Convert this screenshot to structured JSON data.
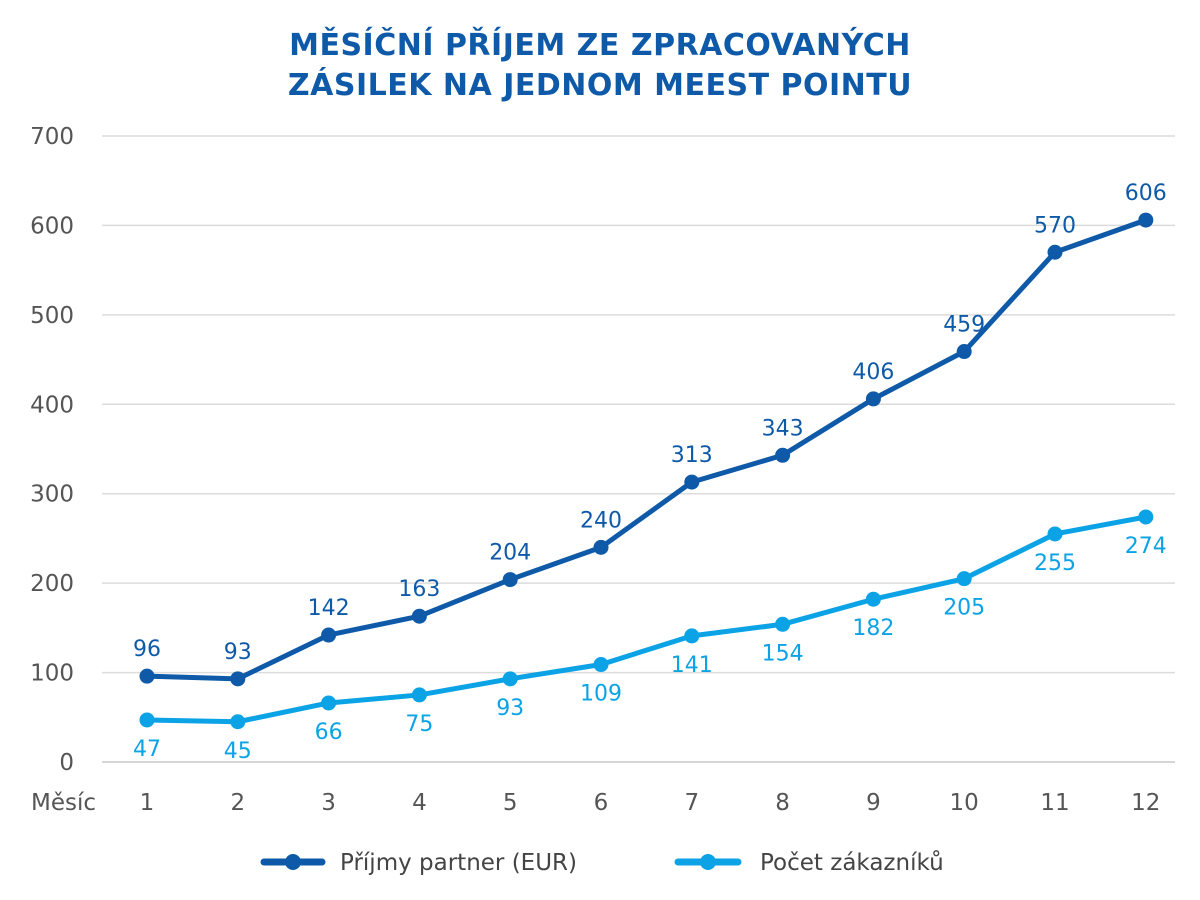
{
  "chart_data": {
    "type": "line",
    "title": "MĚSÍČNÍ PŘÍJEM ZE ZPRACOVANÝCH ZÁSILEK NA JEDNOM MEEST POINTU",
    "title_lines": [
      "MĚSÍČNÍ PŘÍJEM ZE ZPRACOVANÝCH",
      "ZÁSILEK NA JEDNOM MEEST POINTU"
    ],
    "xlabel": "Měsíc",
    "ylabel": "",
    "categories": [
      "1",
      "2",
      "3",
      "4",
      "5",
      "6",
      "7",
      "8",
      "9",
      "10",
      "11",
      "12"
    ],
    "ylim": [
      0,
      700
    ],
    "yticks": [
      0,
      100,
      200,
      300,
      400,
      500,
      600,
      700
    ],
    "grid": true,
    "legend_position": "bottom",
    "series": [
      {
        "name": "Příjmy partner (EUR)",
        "color": "#0f5aa8",
        "label_position": "above",
        "values": [
          96,
          93,
          142,
          163,
          204,
          240,
          313,
          343,
          406,
          459,
          570,
          606
        ]
      },
      {
        "name": "Počet zákazníků",
        "color": "#0ca3e6",
        "label_position": "below",
        "values": [
          47,
          45,
          66,
          75,
          93,
          109,
          141,
          154,
          182,
          205,
          255,
          274
        ]
      }
    ]
  }
}
